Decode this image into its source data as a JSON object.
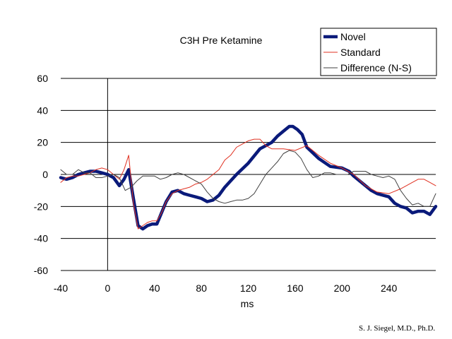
{
  "chart_data": {
    "type": "line",
    "title": "C3H Pre Ketamine",
    "xlabel": "ms",
    "ylabel": "",
    "xlim": [
      -40,
      280
    ],
    "ylim": [
      -60,
      60
    ],
    "x_ticks": [
      -40,
      0,
      40,
      80,
      120,
      160,
      200,
      240
    ],
    "y_ticks": [
      60,
      40,
      20,
      0,
      -20,
      -40,
      -60
    ],
    "grid": "horizontal",
    "legend_position": "top-right",
    "series": [
      {
        "name": "Novel",
        "color": "#0a1a7a",
        "style": "thick",
        "x": [
          -40,
          -35,
          -30,
          -25,
          -20,
          -15,
          -10,
          -5,
          0,
          5,
          10,
          14,
          18,
          22,
          26,
          30,
          34,
          38,
          42,
          46,
          50,
          55,
          60,
          65,
          70,
          75,
          80,
          85,
          90,
          95,
          100,
          110,
          120,
          130,
          140,
          145,
          150,
          155,
          158,
          162,
          166,
          170,
          180,
          190,
          200,
          206,
          210,
          215,
          220,
          225,
          230,
          240,
          245,
          250,
          255,
          260,
          265,
          270,
          275,
          280
        ],
        "y": [
          -2,
          -3,
          -2,
          0,
          1,
          2,
          2,
          1,
          0,
          -2,
          -7,
          -3,
          3,
          -15,
          -32,
          -34,
          -32,
          -31,
          -31,
          -24,
          -17,
          -11,
          -10,
          -12,
          -13,
          -14,
          -15,
          -17,
          -16,
          -13,
          -8,
          0,
          7,
          16,
          20,
          24,
          27,
          30,
          30,
          28,
          25,
          17,
          10,
          5,
          4,
          2,
          -1,
          -4,
          -7,
          -10,
          -12,
          -14,
          -18,
          -20,
          -21,
          -24,
          -23,
          -23,
          -25,
          -20
        ]
      },
      {
        "name": "Standard",
        "color": "#e03020",
        "style": "thin",
        "x": [
          -40,
          -35,
          -30,
          -25,
          -20,
          -15,
          -10,
          -5,
          0,
          5,
          10,
          14,
          18,
          22,
          26,
          30,
          34,
          38,
          42,
          46,
          50,
          55,
          60,
          65,
          70,
          75,
          80,
          85,
          90,
          95,
          100,
          105,
          110,
          115,
          120,
          125,
          130,
          135,
          140,
          150,
          160,
          170,
          180,
          190,
          200,
          210,
          220,
          230,
          240,
          250,
          260,
          265,
          270,
          275,
          280
        ],
        "y": [
          -5,
          -2,
          -1,
          -1,
          0,
          1,
          3,
          4,
          3,
          0,
          -3,
          3,
          12,
          -18,
          -34,
          -32,
          -30,
          -29,
          -29,
          -24,
          -17,
          -12,
          -10,
          -9,
          -8,
          -6,
          -5,
          -3,
          0,
          3,
          9,
          12,
          17,
          19,
          21,
          22,
          22,
          18,
          16,
          16,
          15,
          18,
          12,
          7,
          4,
          0,
          -7,
          -11,
          -12,
          -9,
          -5,
          -3,
          -3,
          -5,
          -7
        ]
      },
      {
        "name": "Difference (N-S)",
        "color": "#404040",
        "style": "thin",
        "x": [
          -40,
          -35,
          -30,
          -25,
          -20,
          -15,
          -10,
          -5,
          0,
          5,
          10,
          15,
          20,
          25,
          30,
          35,
          40,
          45,
          50,
          55,
          60,
          65,
          70,
          75,
          80,
          85,
          90,
          95,
          100,
          105,
          110,
          115,
          120,
          125,
          130,
          135,
          140,
          145,
          150,
          155,
          160,
          165,
          170,
          175,
          180,
          185,
          190,
          195,
          200,
          205,
          210,
          215,
          220,
          225,
          230,
          235,
          240,
          245,
          250,
          255,
          260,
          265,
          270,
          275,
          280
        ],
        "y": [
          3,
          0,
          0,
          3,
          1,
          1,
          -2,
          -2,
          -1,
          0,
          -2,
          -10,
          -8,
          -4,
          -1,
          -1,
          -1,
          -3,
          -2,
          0,
          1,
          0,
          -2,
          -4,
          -6,
          -11,
          -15,
          -17,
          -18,
          -17,
          -16,
          -16,
          -15,
          -12,
          -6,
          0,
          4,
          8,
          13,
          15,
          14,
          10,
          3,
          -2,
          -1,
          1,
          1,
          0,
          0,
          0,
          2,
          2,
          2,
          0,
          -1,
          -2,
          -1,
          -3,
          -10,
          -15,
          -19,
          -18,
          -20,
          -20,
          -12
        ]
      }
    ]
  },
  "footer": {
    "credit": "S. J. Siegel, M.D., Ph.D."
  }
}
